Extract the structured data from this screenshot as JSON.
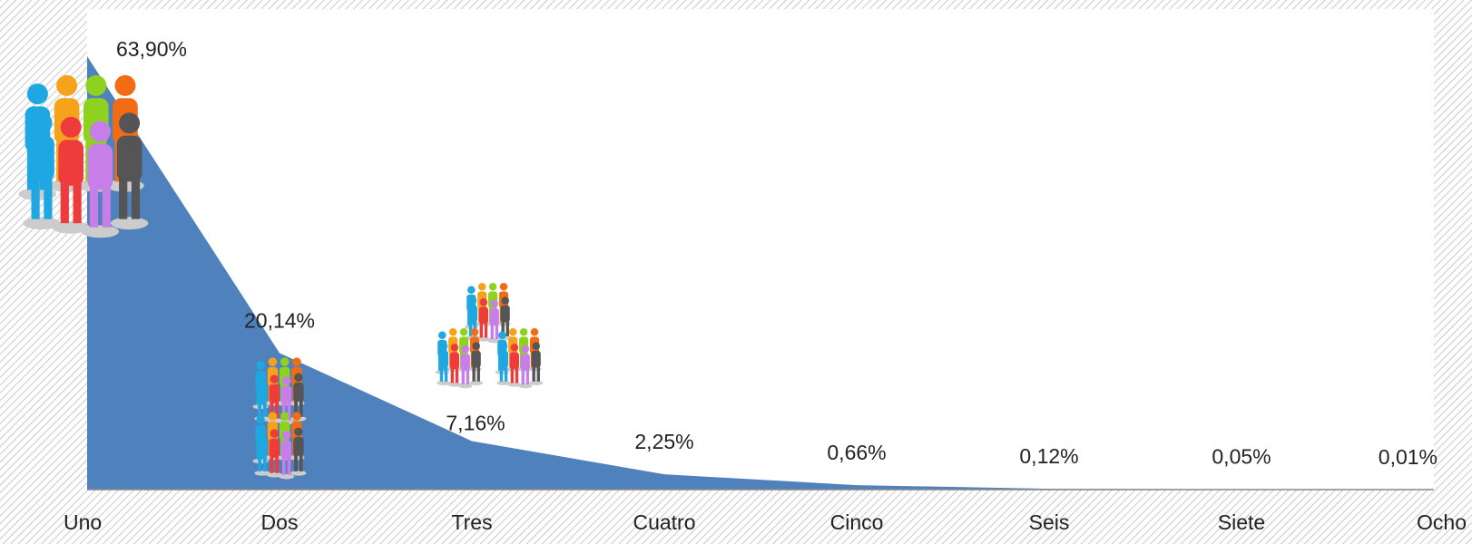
{
  "chart_data": {
    "type": "area",
    "color": "#4f81bd",
    "categories": [
      "Uno",
      "Dos",
      "Tres",
      "Cuatro",
      "Cinco",
      "Seis",
      "Siete",
      "Ocho"
    ],
    "values": [
      63.9,
      20.14,
      7.16,
      2.25,
      0.66,
      0.12,
      0.05,
      0.01
    ],
    "value_labels": [
      "63,90%",
      "20,14%",
      "7,16%",
      "2,25%",
      "0,66%",
      "0,12%",
      "0,05%",
      "0,01%"
    ]
  }
}
